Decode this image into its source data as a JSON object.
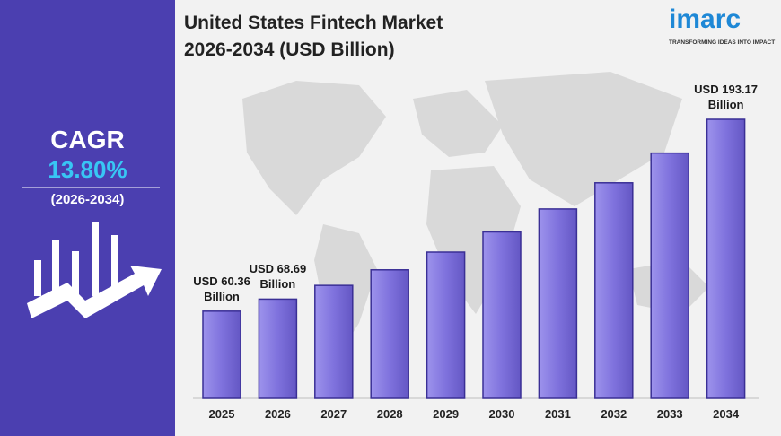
{
  "chart_data": {
    "type": "bar",
    "title": "United States Fintech Market",
    "subtitle": "2026-2034 (USD Billion)",
    "categories": [
      "2025",
      "2026",
      "2027",
      "2028",
      "2029",
      "2030",
      "2031",
      "2032",
      "2033",
      "2034"
    ],
    "values": [
      60.36,
      68.69,
      78.17,
      88.96,
      101.24,
      115.21,
      131.11,
      149.2,
      169.79,
      193.17
    ],
    "value_labels": [
      "USD 60.36 Billion",
      "USD 68.69 Billion",
      null,
      null,
      null,
      null,
      null,
      null,
      null,
      "USD 193.17 Billion"
    ],
    "color": "#7f72dd",
    "ylim": [
      0,
      200
    ]
  },
  "sidebar": {
    "label": "CAGR",
    "value": "13.80%",
    "period": "(2026-2034)"
  },
  "logo": {
    "name": "imarc",
    "tagline": "TRANSFORMING IDEAS INTO IMPACT"
  }
}
